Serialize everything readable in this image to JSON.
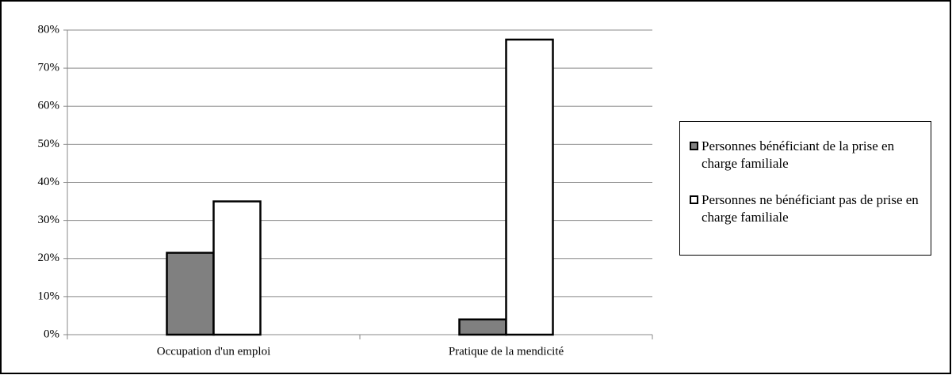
{
  "chart_data": {
    "type": "bar",
    "categories": [
      "Occupation d'un emploi",
      "Pratique de la mendicité"
    ],
    "series": [
      {
        "name": "Personnes bénéficiant de la prise en charge familiale",
        "color": "#808080",
        "values": [
          21.5,
          4
        ]
      },
      {
        "name": "Personnes ne bénéficiant pas de prise en charge familiale",
        "color": "#ffffff",
        "values": [
          35,
          77.5
        ]
      }
    ],
    "ylim": [
      0,
      80
    ],
    "yticks": [
      {
        "value": 0,
        "label": "0%"
      },
      {
        "value": 10,
        "label": "10%"
      },
      {
        "value": 20,
        "label": "20%"
      },
      {
        "value": 30,
        "label": "30%"
      },
      {
        "value": 40,
        "label": "40%"
      },
      {
        "value": 50,
        "label": "50%"
      },
      {
        "value": 60,
        "label": "60%"
      },
      {
        "value": 70,
        "label": "70%"
      },
      {
        "value": 80,
        "label": "80%"
      }
    ],
    "grid": true,
    "legend": "right"
  }
}
